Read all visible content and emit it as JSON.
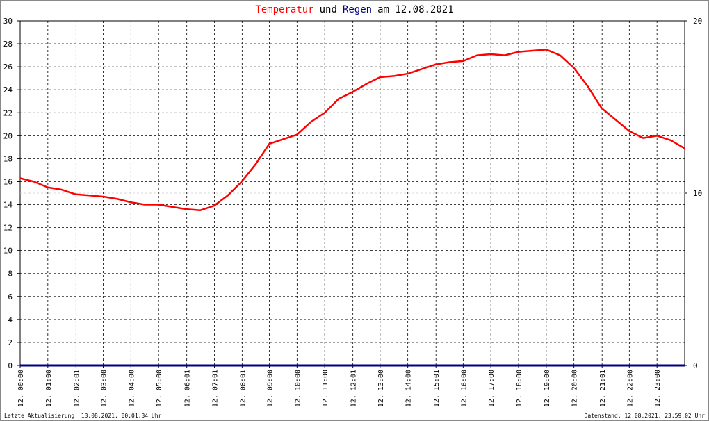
{
  "chart_data": {
    "type": "line",
    "title": [
      "Temperatur",
      "und",
      "Regen",
      "am 12.08.2021"
    ],
    "title_colors": [
      "#ff0000",
      "#000000",
      "#000080",
      "#000000"
    ],
    "xlim": [
      0,
      24
    ],
    "xticks": [
      {
        "value": 0,
        "label": "12. 00:00"
      },
      {
        "value": 1,
        "label": "12. 01:00"
      },
      {
        "value": 2.017,
        "label": "12. 02:01"
      },
      {
        "value": 3,
        "label": "12. 03:00"
      },
      {
        "value": 4,
        "label": "12. 04:00"
      },
      {
        "value": 5,
        "label": "12. 05:00"
      },
      {
        "value": 6.017,
        "label": "12. 06:01"
      },
      {
        "value": 7.017,
        "label": "12. 07:01"
      },
      {
        "value": 8.017,
        "label": "12. 08:01"
      },
      {
        "value": 9,
        "label": "12. 09:00"
      },
      {
        "value": 10,
        "label": "12. 10:00"
      },
      {
        "value": 11,
        "label": "12. 11:00"
      },
      {
        "value": 12.017,
        "label": "12. 12:01"
      },
      {
        "value": 13,
        "label": "12. 13:00"
      },
      {
        "value": 14,
        "label": "12. 14:00"
      },
      {
        "value": 15.017,
        "label": "12. 15:01"
      },
      {
        "value": 16,
        "label": "12. 16:00"
      },
      {
        "value": 17,
        "label": "12. 17:00"
      },
      {
        "value": 18,
        "label": "12. 18:00"
      },
      {
        "value": 19,
        "label": "12. 19:00"
      },
      {
        "value": 20,
        "label": "12. 20:00"
      },
      {
        "value": 21.017,
        "label": "12. 21:01"
      },
      {
        "value": 22,
        "label": "12. 22:00"
      },
      {
        "value": 23,
        "label": "12. 23:00"
      }
    ],
    "ylim": [
      0,
      30
    ],
    "yticks": [
      0,
      2,
      4,
      6,
      8,
      10,
      12,
      14,
      16,
      18,
      20,
      22,
      24,
      26,
      28,
      30
    ],
    "y2lim": [
      0,
      20
    ],
    "y2ticks": [
      0,
      10,
      20
    ],
    "grid": true,
    "series": [
      {
        "name": "Temperatur",
        "color": "#ff0000",
        "x": [
          0,
          0.5,
          1,
          1.5,
          2,
          2.5,
          3,
          3.5,
          4,
          4.5,
          5,
          5.5,
          6,
          6.5,
          7,
          7.5,
          8,
          8.5,
          9,
          9.5,
          10,
          10.5,
          11,
          11.5,
          12,
          12.5,
          13,
          13.5,
          14,
          14.5,
          15,
          15.5,
          16,
          16.5,
          17,
          17.5,
          18,
          18.5,
          19,
          19.5,
          20,
          20.5,
          21,
          21.5,
          22,
          22.5,
          23,
          23.5,
          24
        ],
        "values": [
          16.3,
          16.0,
          15.5,
          15.3,
          14.9,
          14.8,
          14.7,
          14.5,
          14.2,
          14.0,
          14.0,
          13.8,
          13.6,
          13.5,
          13.9,
          14.8,
          16.0,
          17.5,
          19.3,
          19.7,
          20.1,
          21.2,
          22.0,
          23.2,
          23.8,
          24.5,
          25.1,
          25.2,
          25.4,
          25.8,
          26.2,
          26.4,
          26.5,
          27.0,
          27.1,
          27.0,
          27.3,
          27.4,
          27.5,
          27.0,
          25.9,
          24.3,
          22.4,
          21.4,
          20.4,
          19.8,
          20.0,
          19.6,
          18.9
        ]
      },
      {
        "name": "Regen",
        "color": "#000080",
        "axis": "y2",
        "x": [
          0,
          24
        ],
        "values": [
          0,
          0
        ]
      }
    ],
    "footer_left": "Letzte Aktualisierung: 13.08.2021, 00:01:34 Uhr",
    "footer_right": "Datenstand: 12.08.2021, 23:59:02 Uhr"
  }
}
